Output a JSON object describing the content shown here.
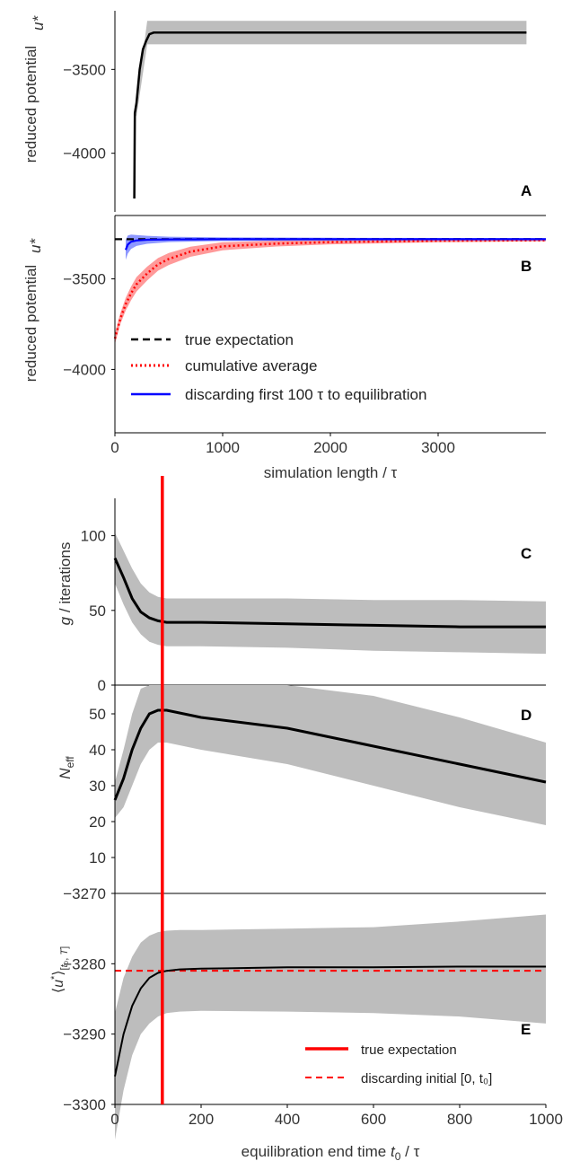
{
  "colors": {
    "black": "#000000",
    "gray_band": "#bdbdbd",
    "red": "#ff0000",
    "red_band": "#ff8080",
    "blue": "#0000ff",
    "blue_band": "#7a86ff"
  },
  "chart_data": [
    {
      "panel": "A",
      "type": "line",
      "ylabel": "reduced potential u*",
      "xlim": [
        0,
        4000
      ],
      "ylim": [
        -4350,
        -3150
      ],
      "yticks": [
        -3500,
        -4000
      ],
      "series": [
        {
          "x": [
            180,
            185,
            200,
            230,
            260,
            290,
            320,
            360,
            400,
            500,
            1000,
            2000,
            3000,
            3820
          ],
          "y": [
            -4270,
            -3760,
            -3700,
            -3500,
            -3380,
            -3330,
            -3290,
            -3280,
            -3280,
            -3280,
            -3280,
            -3280,
            -3280,
            -3280
          ],
          "band_half": 70
        }
      ]
    },
    {
      "panel": "B",
      "type": "line",
      "ylabel": "reduced potential u*",
      "xlabel": "simulation length / τ",
      "xlim": [
        0,
        4000
      ],
      "ylim": [
        -4350,
        -3150
      ],
      "xticks": [
        0,
        1000,
        2000,
        3000
      ],
      "yticks": [
        -3500,
        -4000
      ],
      "legend": {
        "position": "lower-left",
        "entries": [
          "true expectation",
          "cumulative average",
          "discarding first 100 τ to equilibration"
        ]
      },
      "series": [
        {
          "name": "true expectation",
          "style": "dashed",
          "x": [
            0,
            4000
          ],
          "y": [
            -3281,
            -3281
          ]
        },
        {
          "name": "cumulative average",
          "style": "dotted",
          "x": [
            0,
            50,
            100,
            150,
            200,
            300,
            400,
            500,
            700,
            1000,
            1500,
            2000,
            3000,
            4000
          ],
          "y": [
            -3830,
            -3720,
            -3640,
            -3580,
            -3530,
            -3470,
            -3420,
            -3390,
            -3350,
            -3320,
            -3305,
            -3297,
            -3290,
            -3287
          ],
          "band_half": [
            30,
            30,
            35,
            38,
            40,
            38,
            35,
            33,
            28,
            22,
            16,
            12,
            8,
            6
          ]
        },
        {
          "name": "discarding first 100 τ to equilibration",
          "style": "solid",
          "x": [
            100,
            120,
            150,
            200,
            300,
            500,
            1000,
            2000,
            4000
          ],
          "y": [
            -3340,
            -3310,
            -3295,
            -3288,
            -3284,
            -3282,
            -3281,
            -3281,
            -3281
          ],
          "band_half": [
            55,
            50,
            40,
            30,
            22,
            15,
            10,
            8,
            6
          ]
        }
      ]
    },
    {
      "panel": "C",
      "type": "line",
      "ylabel": "g / iterations",
      "xlim": [
        0,
        1000
      ],
      "ylim": [
        0,
        125
      ],
      "yticks": [
        0,
        50,
        100
      ],
      "vline_x": 110,
      "series": [
        {
          "x": [
            0,
            20,
            40,
            60,
            80,
            100,
            120,
            150,
            200,
            400,
            600,
            800,
            1000
          ],
          "y": [
            85,
            72,
            58,
            49,
            45,
            43,
            42,
            42,
            42,
            41,
            40,
            39,
            39
          ],
          "upper": [
            102,
            90,
            78,
            68,
            62,
            59,
            58,
            58,
            58,
            58,
            57,
            57,
            56
          ],
          "lower": [
            68,
            54,
            42,
            34,
            29,
            27,
            26,
            26,
            26,
            25,
            23,
            22,
            21
          ]
        }
      ]
    },
    {
      "panel": "D",
      "type": "line",
      "ylabel": "N_eff",
      "xlim": [
        0,
        1000
      ],
      "ylim": [
        0,
        58
      ],
      "yticks": [
        10,
        20,
        30,
        40,
        50
      ],
      "vline_x": 110,
      "series": [
        {
          "x": [
            0,
            20,
            40,
            60,
            80,
            100,
            120,
            200,
            400,
            600,
            800,
            1000
          ],
          "y": [
            26,
            32,
            40,
            46,
            50,
            51,
            51,
            49,
            46,
            41,
            36,
            31
          ],
          "upper": [
            31,
            40,
            50,
            57,
            58,
            58,
            58,
            58,
            58,
            55,
            49,
            42
          ],
          "lower": [
            21,
            24,
            30,
            36,
            40,
            42,
            42,
            40,
            36,
            30,
            24,
            19
          ]
        }
      ]
    },
    {
      "panel": "E",
      "type": "line",
      "ylabel": "⟨u*⟩[t₀,T]",
      "xlabel": "equilibration end time t₀ / τ",
      "xlim": [
        0,
        1000
      ],
      "ylim": [
        -3300,
        -3270
      ],
      "xticks": [
        0,
        200,
        400,
        600,
        800,
        1000
      ],
      "yticks": [
        -3270,
        -3280,
        -3290,
        -3300
      ],
      "vline_x": 110,
      "hline_y": -3281,
      "legend": {
        "position": "lower-right",
        "entries": [
          "true expectation",
          "discarding initial [0, t₀]"
        ]
      },
      "series": [
        {
          "x": [
            0,
            20,
            40,
            60,
            80,
            100,
            120,
            150,
            200,
            400,
            600,
            800,
            1000
          ],
          "y": [
            -3296,
            -3290,
            -3286,
            -3283.5,
            -3282,
            -3281.3,
            -3281,
            -3280.8,
            -3280.7,
            -3280.5,
            -3280.5,
            -3280.4,
            -3280.4
          ],
          "upper": [
            -3287,
            -3282,
            -3279,
            -3277,
            -3276,
            -3275.5,
            -3275.3,
            -3275.2,
            -3275.2,
            -3275,
            -3274.8,
            -3274,
            -3273
          ],
          "lower": [
            -3305,
            -3298,
            -3293,
            -3290,
            -3288.5,
            -3287.5,
            -3287,
            -3286.8,
            -3286.7,
            -3286.8,
            -3287,
            -3287.5,
            -3288.5
          ]
        }
      ]
    }
  ],
  "panel_letters": [
    "A",
    "B",
    "C",
    "D",
    "E"
  ],
  "axis_text": {
    "a_ylabel": "reduced potential",
    "b_ylabel": "reduced potential",
    "b_xlabel": "simulation length / τ",
    "c_ylabel": "/ iterations",
    "c_ylabel_g": "g",
    "d_ylabel_n": "N",
    "d_ylabel_sub": "eff",
    "e_xlabel": "equilibration end time",
    "e_xlabel_tail": "/ τ"
  }
}
